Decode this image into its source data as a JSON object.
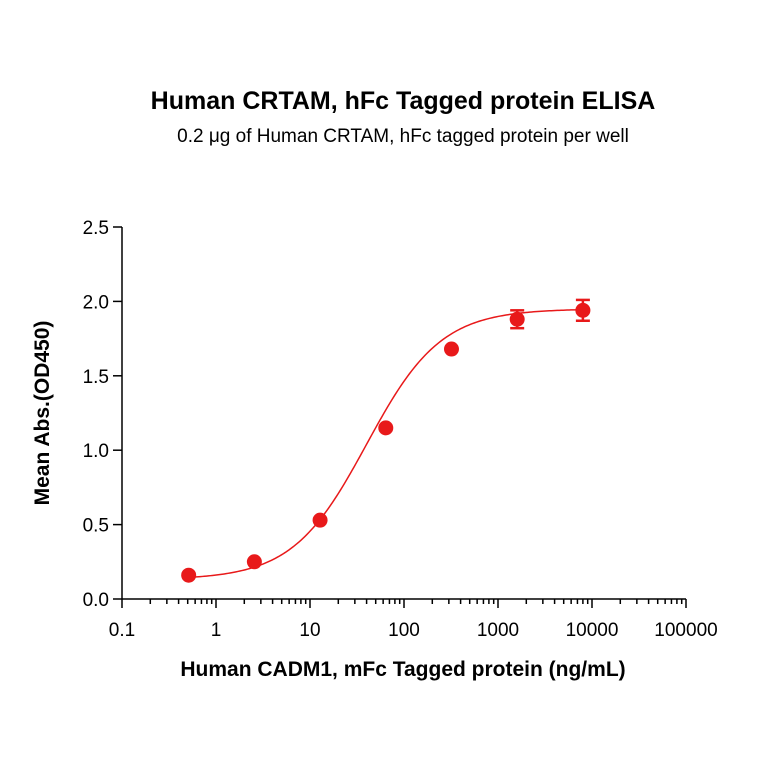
{
  "chart_data": {
    "type": "scatter",
    "title": "Human CRTAM, hFc Tagged protein ELISA",
    "subtitle": "0.2 μg of Human CRTAM, hFc tagged protein per well",
    "xlabel": "Human CADM1, mFc Tagged protein (ng/mL)",
    "ylabel": "Mean Abs.(OD450)",
    "x_scale": "log",
    "xlim": [
      0.1,
      100000
    ],
    "ylim": [
      0.0,
      2.5
    ],
    "x_ticks": [
      {
        "value": 0.1,
        "label": "0.1"
      },
      {
        "value": 1,
        "label": "1"
      },
      {
        "value": 10,
        "label": "10"
      },
      {
        "value": 100,
        "label": "100"
      },
      {
        "value": 1000,
        "label": "1000"
      },
      {
        "value": 10000,
        "label": "10000"
      },
      {
        "value": 100000,
        "label": "100000"
      }
    ],
    "y_ticks": [
      {
        "value": 0.0,
        "label": "0.0"
      },
      {
        "value": 0.5,
        "label": "0.5"
      },
      {
        "value": 1.0,
        "label": "1.0"
      },
      {
        "value": 1.5,
        "label": "1.5"
      },
      {
        "value": 2.0,
        "label": "2.0"
      },
      {
        "value": 2.5,
        "label": "2.5"
      }
    ],
    "grid": false,
    "legend": "none",
    "color": "#e8191a",
    "series": [
      {
        "x": [
          0.512,
          2.56,
          12.8,
          64,
          320,
          1600,
          8000
        ],
        "y": [
          0.16,
          0.25,
          0.53,
          1.15,
          1.68,
          1.88,
          1.94
        ],
        "error": [
          0.0,
          0.0,
          0.0,
          0.0,
          0.0,
          0.06,
          0.07
        ]
      }
    ],
    "fit": {
      "model": "4PL",
      "bottom": 0.13,
      "top": 1.95,
      "ec50": 40,
      "hill": 1.1
    }
  }
}
